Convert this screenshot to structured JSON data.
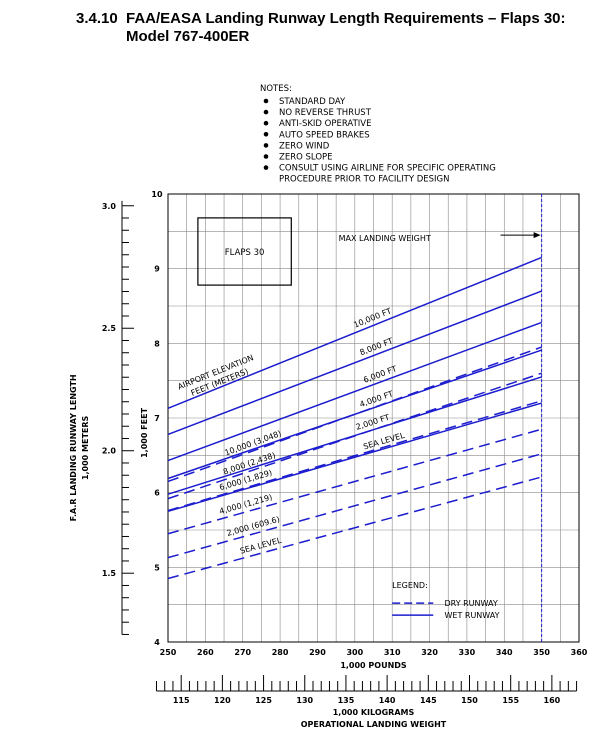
{
  "heading": {
    "number": "3.4.10",
    "line1": "FAA/EASA Landing Runway Length Requirements – Flaps 30:",
    "line2": "Model 767-400ER"
  },
  "notes": {
    "title": "NOTES:",
    "items": [
      "STANDARD DAY",
      "NO REVERSE THRUST",
      "ANTI-SKID OPERATIVE",
      "AUTO SPEED BRAKES",
      "ZERO WIND",
      "ZERO SLOPE",
      "CONSULT USING AIRLINE FOR SPECIFIC OPERATING",
      "PROCEDURE PRIOR TO FACILITY DESIGN"
    ]
  },
  "chart_data": {
    "type": "line",
    "flaps_label": "FLAPS 30",
    "max_landing_weight_label": "MAX LANDING WEIGHT",
    "max_landing_weight_x": 350,
    "elevation_header": [
      "AIRPORT ELEVATION",
      "FEET (METERS)"
    ],
    "xlim": [
      250,
      360
    ],
    "ylim": [
      4,
      10
    ],
    "xticks": [
      "250",
      "260",
      "270",
      "280",
      "290",
      "300",
      "310",
      "320",
      "330",
      "340",
      "350",
      "360"
    ],
    "xlabel": "1,000 POUNDS",
    "yticks_feet": [
      "4",
      "5",
      "6",
      "7",
      "8",
      "9",
      "10"
    ],
    "ylabel_feet": "1,000 FEET",
    "yticks_meters": [
      "1.5",
      "2.0",
      "2.5",
      "3.0"
    ],
    "ylabel_meters": [
      "F.A.R LANDING RUNWAY LENGTH",
      "1,000 METERS"
    ],
    "kg_ticks": [
      "115",
      "120",
      "125",
      "130",
      "135",
      "140",
      "145",
      "150",
      "155",
      "160"
    ],
    "kg_label": "1,000 KILOGRAMS",
    "bottom_label": "OPERATIONAL LANDING WEIGHT",
    "legend": {
      "title": "LEGEND:",
      "dry": "DRY RUNWAY",
      "wet": "WET RUNWAY"
    },
    "series": [
      {
        "name": "10,000 FT",
        "runway": "wet",
        "x": [
          250,
          350
        ],
        "y": [
          7.13,
          9.15
        ]
      },
      {
        "name": "8,000 FT",
        "runway": "wet",
        "x": [
          250,
          350
        ],
        "y": [
          6.78,
          8.7
        ]
      },
      {
        "name": "6,000 FT",
        "runway": "wet",
        "x": [
          250,
          350
        ],
        "y": [
          6.43,
          8.28
        ]
      },
      {
        "name": "4,000 FT",
        "runway": "wet",
        "x": [
          250,
          350
        ],
        "y": [
          6.19,
          7.91
        ]
      },
      {
        "name": "2,000 FT",
        "runway": "wet",
        "x": [
          250,
          350
        ],
        "y": [
          5.98,
          7.55
        ]
      },
      {
        "name": "SEA LEVEL",
        "runway": "wet",
        "x": [
          250,
          350
        ],
        "y": [
          5.75,
          7.2
        ]
      },
      {
        "name": "10,000  (3,048)",
        "runway": "dry",
        "x": [
          250,
          350
        ],
        "y": [
          6.15,
          7.95
        ]
      },
      {
        "name": "8,000  (2,438)",
        "runway": "dry",
        "x": [
          250,
          350
        ],
        "y": [
          5.92,
          7.6
        ]
      },
      {
        "name": "6,000  (1,829)",
        "runway": "dry",
        "x": [
          250,
          350
        ],
        "y": [
          5.76,
          7.23
        ]
      },
      {
        "name": "4,000  (1,219)",
        "runway": "dry",
        "x": [
          250,
          350
        ],
        "y": [
          5.45,
          6.85
        ]
      },
      {
        "name": "2,000  (609.6)",
        "runway": "dry",
        "x": [
          250,
          350
        ],
        "y": [
          5.13,
          6.52
        ]
      },
      {
        "name": "SEA LEVEL",
        "runway": "dry",
        "x": [
          250,
          350
        ],
        "y": [
          4.85,
          6.21
        ]
      }
    ],
    "colors": {
      "line": "#1c1ccf",
      "grid": "#8a8a8a",
      "axis": "#000000"
    }
  }
}
